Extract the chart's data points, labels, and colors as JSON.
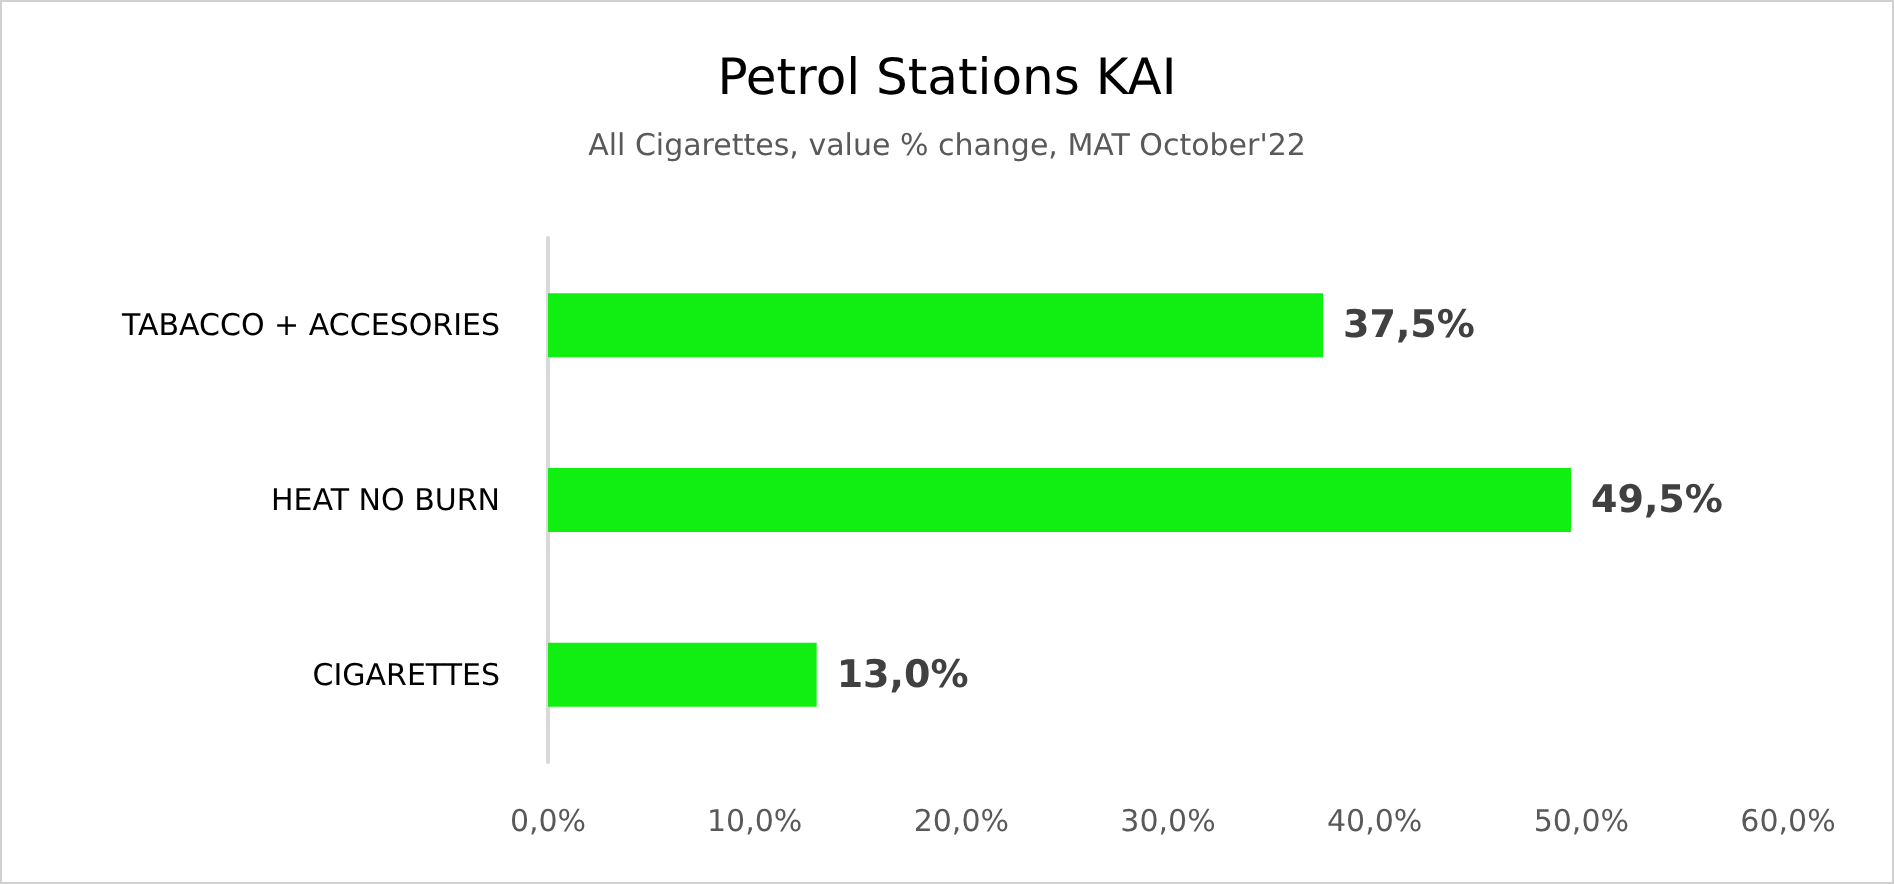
{
  "chart_data": {
    "type": "bar",
    "orientation": "horizontal",
    "title": "Petrol Stations KAI",
    "subtitle": "All Cigarettes, value % change, MAT October'22",
    "categories": [
      "TABACCO + ACCESORIES",
      "HEAT NO BURN",
      "CIGARETTES"
    ],
    "values": [
      37.5,
      49.5,
      13.0
    ],
    "color": "#11ee11",
    "value_labels": [
      "37,5%",
      "49,5%",
      "13,0%"
    ],
    "xlim": [
      0,
      60
    ],
    "xticks": [
      {
        "value": 0,
        "label": "0,0%"
      },
      {
        "value": 10,
        "label": "10,0%"
      },
      {
        "value": 20,
        "label": "20,0%"
      },
      {
        "value": 30,
        "label": "30,0%"
      },
      {
        "value": 40,
        "label": "40,0%"
      },
      {
        "value": 50,
        "label": "50,0%"
      },
      {
        "value": 60,
        "label": "60,0%"
      }
    ],
    "grid": false
  }
}
